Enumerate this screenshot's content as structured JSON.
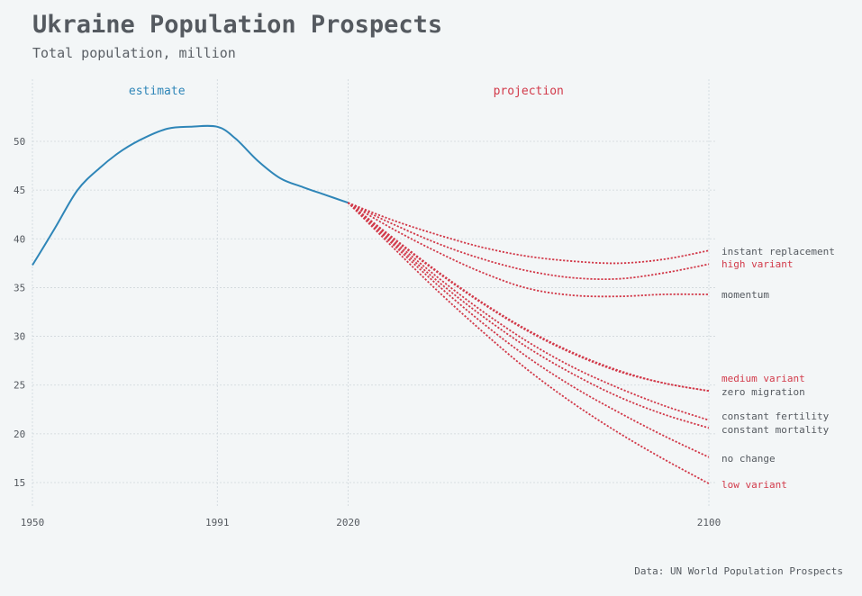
{
  "title": "Ukraine Population Prospects",
  "subtitle": "Total population, million",
  "source": "Data: UN World Population Prospects",
  "colors": {
    "estimate": "#2f86b8",
    "projection": "#d23a4a",
    "text": "#555a60",
    "background": "#f3f6f7"
  },
  "chart_data": {
    "type": "line",
    "x_ticks": [
      1950,
      1991,
      2020,
      2100
    ],
    "y_ticks": [
      15,
      20,
      25,
      30,
      35,
      40,
      45,
      50
    ],
    "xlim": [
      1950,
      2100
    ],
    "ylim": [
      12,
      57
    ],
    "grid": true,
    "sections": [
      {
        "label": "estimate",
        "color": "#2f86b8"
      },
      {
        "label": "projection",
        "color": "#d23a4a"
      }
    ],
    "estimate": {
      "x": [
        1950,
        1955,
        1960,
        1965,
        1970,
        1975,
        1980,
        1985,
        1991,
        1995,
        2000,
        2005,
        2010,
        2015,
        2020
      ],
      "y": [
        37.3,
        41.1,
        45.0,
        47.3,
        49.1,
        50.4,
        51.3,
        51.5,
        51.5,
        50.3,
        48.0,
        46.2,
        45.3,
        44.5,
        43.7
      ]
    },
    "projections": [
      {
        "name": "instant replacement",
        "label_color": "#555a60",
        "x": [
          2020,
          2030,
          2040,
          2050,
          2060,
          2070,
          2080,
          2090,
          2100
        ],
        "y": [
          43.7,
          41.9,
          40.4,
          39.1,
          38.2,
          37.7,
          37.5,
          37.9,
          38.8
        ]
      },
      {
        "name": "high variant",
        "label_color": "#d23a4a",
        "x": [
          2020,
          2030,
          2040,
          2050,
          2060,
          2070,
          2080,
          2090,
          2100
        ],
        "y": [
          43.7,
          41.5,
          39.5,
          37.9,
          36.7,
          36.0,
          35.9,
          36.5,
          37.4
        ]
      },
      {
        "name": "momentum",
        "label_color": "#555a60",
        "x": [
          2020,
          2030,
          2040,
          2050,
          2060,
          2070,
          2080,
          2090,
          2100
        ],
        "y": [
          43.7,
          41.0,
          38.6,
          36.5,
          34.9,
          34.2,
          34.1,
          34.3,
          34.3
        ]
      },
      {
        "name": "medium variant",
        "label_color": "#d23a4a",
        "x": [
          2020,
          2030,
          2040,
          2050,
          2060,
          2070,
          2080,
          2090,
          2100
        ],
        "y": [
          43.7,
          40.0,
          36.5,
          33.3,
          30.5,
          28.2,
          26.4,
          25.2,
          24.4
        ]
      },
      {
        "name": "zero migration",
        "label_color": "#555a60",
        "x": [
          2020,
          2030,
          2040,
          2050,
          2060,
          2070,
          2080,
          2090,
          2100
        ],
        "y": [
          43.7,
          40.1,
          36.6,
          33.4,
          30.6,
          28.3,
          26.5,
          25.2,
          24.4
        ]
      },
      {
        "name": "constant fertility",
        "label_color": "#555a60",
        "x": [
          2020,
          2030,
          2040,
          2050,
          2060,
          2070,
          2080,
          2090,
          2100
        ],
        "y": [
          43.7,
          39.8,
          36.0,
          32.5,
          29.4,
          26.8,
          24.7,
          22.9,
          21.4
        ]
      },
      {
        "name": "constant mortality",
        "label_color": "#555a60",
        "x": [
          2020,
          2030,
          2040,
          2050,
          2060,
          2070,
          2080,
          2090,
          2100
        ],
        "y": [
          43.7,
          39.6,
          35.6,
          32.0,
          28.8,
          26.1,
          23.8,
          22.0,
          20.6
        ]
      },
      {
        "name": "no change",
        "label_color": "#555a60",
        "x": [
          2020,
          2030,
          2040,
          2050,
          2060,
          2070,
          2080,
          2090,
          2100
        ],
        "y": [
          43.7,
          39.4,
          35.2,
          31.3,
          27.8,
          24.8,
          22.2,
          19.8,
          17.6
        ]
      },
      {
        "name": "low variant",
        "label_color": "#d23a4a",
        "x": [
          2020,
          2030,
          2040,
          2050,
          2060,
          2070,
          2080,
          2090,
          2100
        ],
        "y": [
          43.7,
          39.1,
          34.6,
          30.4,
          26.5,
          23.1,
          20.1,
          17.4,
          14.9
        ]
      }
    ]
  }
}
